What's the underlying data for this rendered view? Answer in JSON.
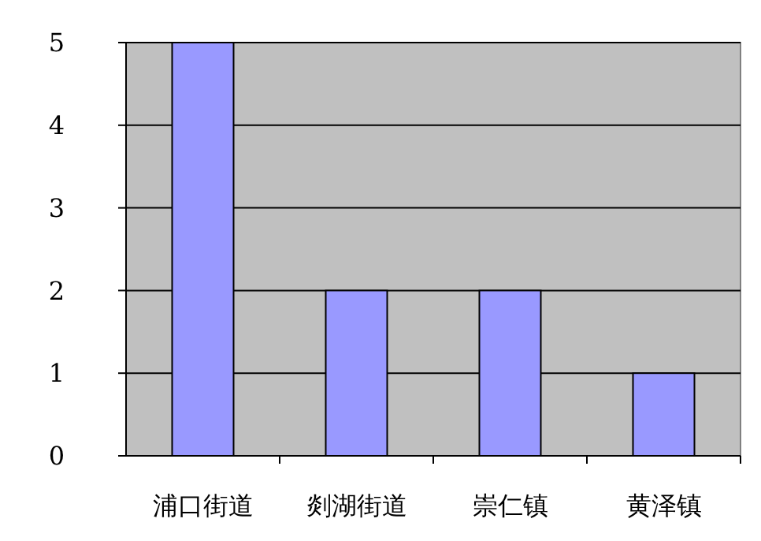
{
  "chart_data": {
    "type": "bar",
    "categories": [
      "浦口街道",
      "剡湖街道",
      "崇仁镇",
      "黄泽镇"
    ],
    "values": [
      5,
      2,
      2,
      1
    ],
    "color": "#9999ff",
    "ylim": [
      0,
      5
    ],
    "yticks": [
      0,
      1,
      2,
      3,
      4,
      5
    ],
    "grid": "y"
  }
}
